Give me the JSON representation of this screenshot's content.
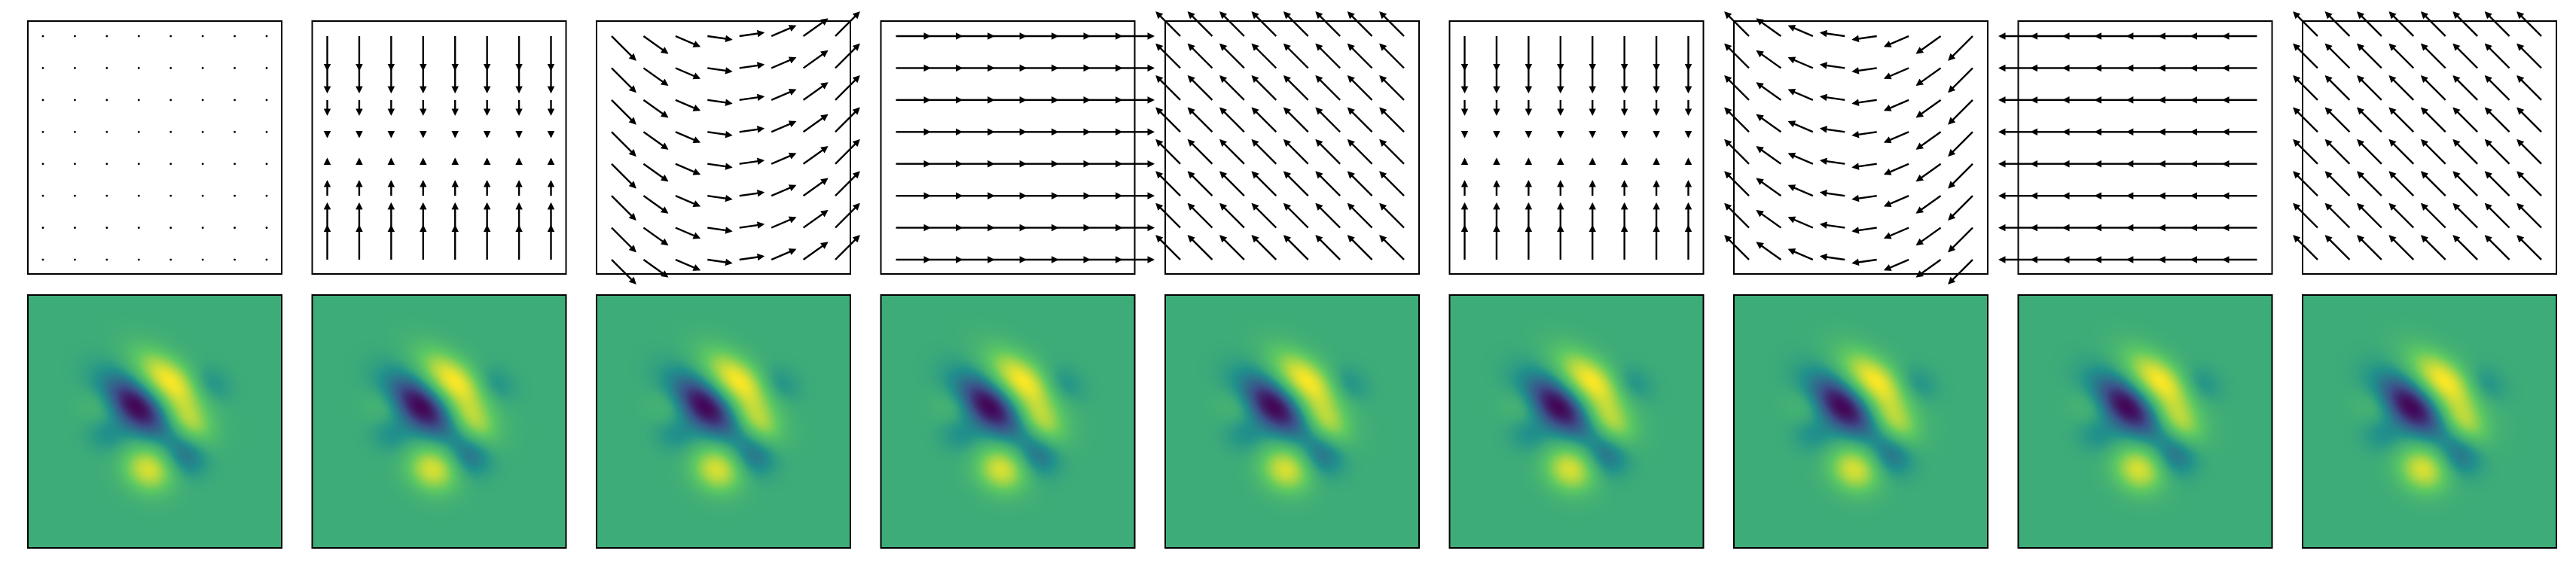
{
  "chart_data": {
    "type": "quiver_and_heatmap_grid",
    "title": "",
    "grid": false,
    "rows": 2,
    "columns": 9,
    "quiver": {
      "grid_points": 8,
      "x_range": [
        -1,
        1
      ],
      "y_range": [
        -1,
        1
      ],
      "fields": [
        {
          "u": [
            0,
            0,
            0
          ],
          "v": [
            0,
            0,
            0
          ]
        },
        {
          "u": [
            0,
            0,
            0
          ],
          "v": [
            0,
            0,
            -1
          ]
        },
        {
          "u": [
            1,
            0,
            0
          ],
          "v": [
            0,
            1,
            0
          ]
        },
        {
          "u": [
            1,
            0,
            0
          ],
          "v": [
            0,
            0,
            0
          ]
        },
        {
          "u": [
            -1,
            0,
            0
          ],
          "v": [
            1,
            0,
            0
          ]
        },
        {
          "u": [
            0,
            0,
            0
          ],
          "v": [
            0,
            0,
            -1
          ]
        },
        {
          "u": [
            -1,
            0,
            0
          ],
          "v": [
            0,
            -1,
            0
          ]
        },
        {
          "u": [
            -1,
            0,
            0
          ],
          "v": [
            0,
            0,
            0
          ]
        },
        {
          "u": [
            -1,
            0,
            0
          ],
          "v": [
            1,
            0,
            0
          ]
        }
      ]
    },
    "heatmap": {
      "colormap": "viridis",
      "colors": [
        "#440154",
        "#3b528b",
        "#21918c",
        "#5ec962",
        "#fde725"
      ],
      "background_color": "#2fb47c",
      "x_range": [
        -1,
        1
      ],
      "y_range": [
        -1,
        1
      ],
      "lobes": [
        {
          "x": -0.15,
          "y": 0.12,
          "sx": 0.22,
          "sy": 0.12,
          "angle": -40,
          "amp": -1.0
        },
        {
          "x": 0.12,
          "y": 0.32,
          "sx": 0.22,
          "sy": 0.11,
          "angle": -40,
          "amp": 1.0
        },
        {
          "x": 0.27,
          "y": 0.0,
          "sx": 0.15,
          "sy": 0.09,
          "angle": -40,
          "amp": 0.6
        },
        {
          "x": -0.05,
          "y": -0.38,
          "sx": 0.14,
          "sy": 0.12,
          "angle": -30,
          "amp": 0.85
        },
        {
          "x": 0.24,
          "y": -0.28,
          "sx": 0.12,
          "sy": 0.11,
          "angle": -30,
          "amp": -0.35
        },
        {
          "x": -0.42,
          "y": 0.12,
          "sx": 0.12,
          "sy": 0.11,
          "angle": -30,
          "amp": 0.2
        },
        {
          "x": 0.42,
          "y": 0.28,
          "sx": 0.12,
          "sy": 0.1,
          "angle": -30,
          "amp": -0.25
        },
        {
          "x": -0.38,
          "y": -0.1,
          "sx": 0.12,
          "sy": 0.1,
          "angle": -30,
          "amp": -0.2
        }
      ]
    }
  }
}
